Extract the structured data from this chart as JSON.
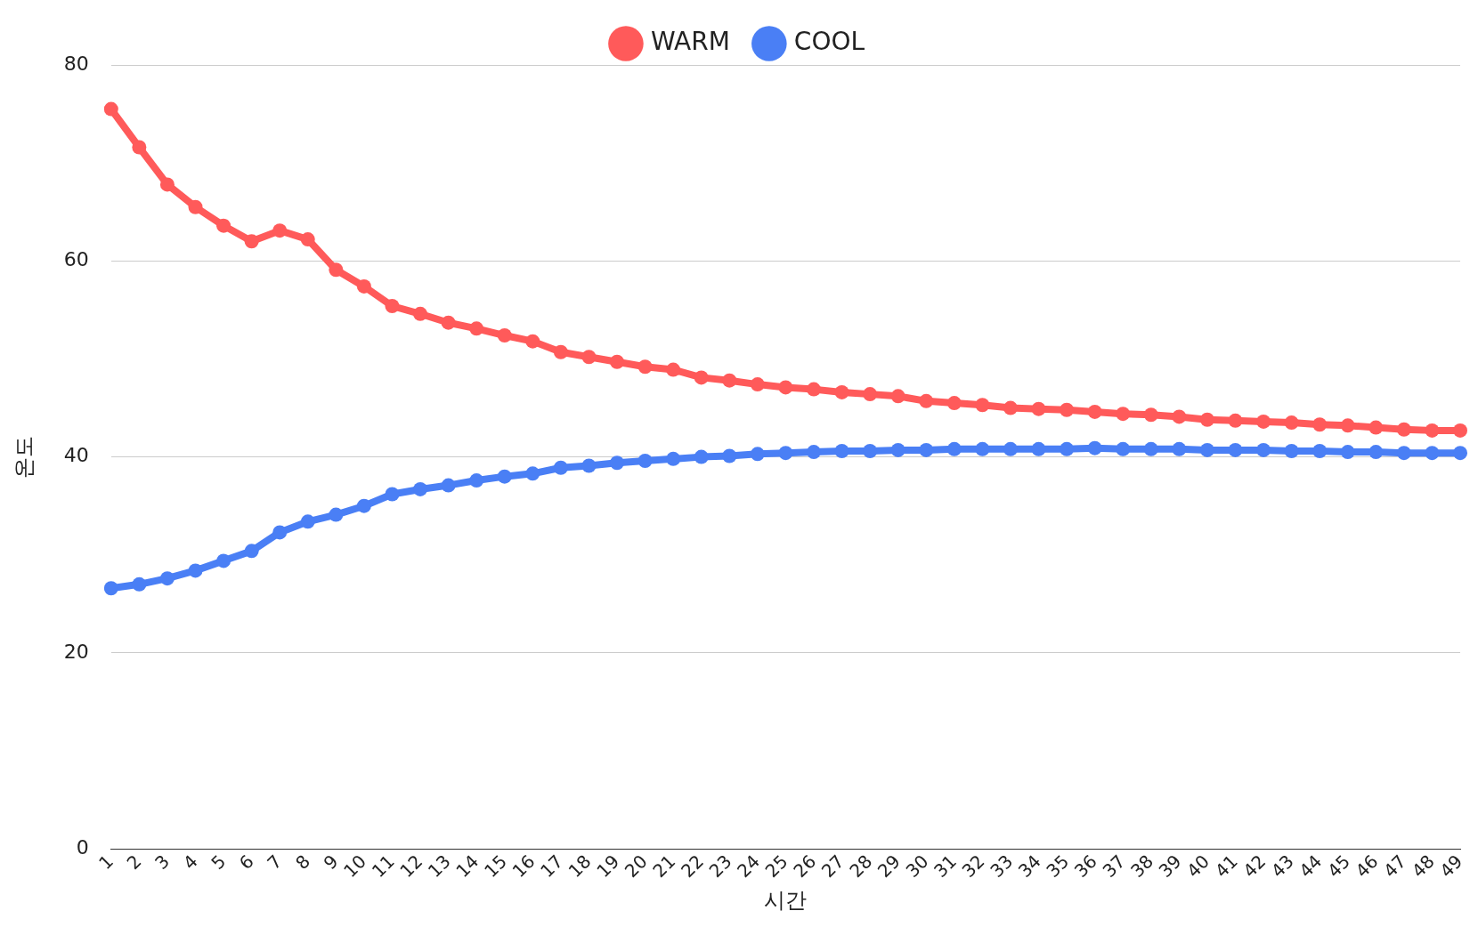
{
  "chart_data": {
    "type": "line",
    "xlabel": "시간",
    "ylabel": "온도",
    "categories": [
      "1",
      "2",
      "3",
      "4",
      "5",
      "6",
      "7",
      "8",
      "9",
      "10",
      "11",
      "12",
      "13",
      "14",
      "15",
      "16",
      "17",
      "18",
      "19",
      "20",
      "21",
      "22",
      "23",
      "24",
      "25",
      "26",
      "27",
      "28",
      "29",
      "30",
      "31",
      "32",
      "33",
      "34",
      "35",
      "36",
      "37",
      "38",
      "39",
      "40",
      "41",
      "42",
      "43",
      "44",
      "45",
      "46",
      "47",
      "48",
      "49"
    ],
    "series": [
      {
        "name": "WARM",
        "color": "#ff5a5a",
        "values": [
          75.5,
          71.6,
          67.8,
          65.5,
          63.6,
          62.0,
          63.1,
          62.2,
          59.1,
          57.4,
          55.4,
          54.6,
          53.7,
          53.1,
          52.4,
          51.8,
          50.7,
          50.2,
          49.7,
          49.2,
          48.9,
          48.1,
          47.8,
          47.4,
          47.1,
          46.9,
          46.6,
          46.4,
          46.2,
          45.7,
          45.5,
          45.3,
          45.0,
          44.9,
          44.8,
          44.6,
          44.4,
          44.3,
          44.1,
          43.8,
          43.7,
          43.6,
          43.5,
          43.3,
          43.2,
          43.0,
          42.8,
          42.7,
          42.7
        ]
      },
      {
        "name": "COOL",
        "color": "#4a7ff5",
        "values": [
          26.6,
          27.0,
          27.6,
          28.4,
          29.4,
          30.4,
          32.3,
          33.4,
          34.1,
          35.0,
          36.2,
          36.7,
          37.1,
          37.6,
          38.0,
          38.3,
          38.9,
          39.1,
          39.4,
          39.6,
          39.8,
          40.0,
          40.1,
          40.3,
          40.4,
          40.5,
          40.6,
          40.6,
          40.7,
          40.7,
          40.8,
          40.8,
          40.8,
          40.8,
          40.8,
          40.9,
          40.8,
          40.8,
          40.8,
          40.7,
          40.7,
          40.7,
          40.6,
          40.6,
          40.5,
          40.5,
          40.4,
          40.4,
          40.4
        ]
      }
    ],
    "ylim": [
      0,
      80
    ],
    "yticks": [
      0,
      20,
      40,
      60,
      80
    ],
    "grid": "y",
    "legend": "top",
    "marker": "circle",
    "line_style": "solid"
  }
}
